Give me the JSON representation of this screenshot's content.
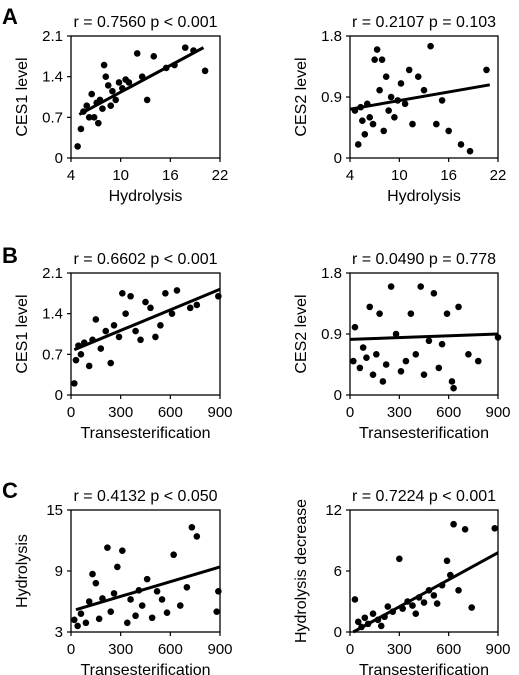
{
  "panels": [
    {
      "label": "A"
    },
    {
      "label": "B"
    },
    {
      "label": "C"
    }
  ],
  "chart_data": [
    {
      "type": "scatter",
      "title": "r = 0.7560 p < 0.001",
      "xlabel": "Hydrolysis",
      "ylabel": "CES1 level",
      "xlim": [
        4,
        22
      ],
      "ylim": [
        0,
        2.1
      ],
      "xticks": [
        "4",
        "10",
        "16",
        "22"
      ],
      "xtick_values": [
        4,
        10,
        16,
        22
      ],
      "yticks": [
        "0",
        "0.7",
        "1.4",
        "2.1"
      ],
      "ytick_values": [
        0,
        0.7,
        1.4,
        2.1
      ],
      "grid": false,
      "legend": "none",
      "trendline": {
        "x": [
          5,
          20
        ],
        "y": [
          0.75,
          1.9
        ]
      },
      "points": [
        [
          4.8,
          0.2
        ],
        [
          5.2,
          0.5
        ],
        [
          5.5,
          0.8
        ],
        [
          5.9,
          0.9
        ],
        [
          6.2,
          0.7
        ],
        [
          6.5,
          1.1
        ],
        [
          6.8,
          0.7
        ],
        [
          7.1,
          0.95
        ],
        [
          7.3,
          0.6
        ],
        [
          7.5,
          1.0
        ],
        [
          7.8,
          0.85
        ],
        [
          8.0,
          1.6
        ],
        [
          8.2,
          1.4
        ],
        [
          8.5,
          1.25
        ],
        [
          8.8,
          0.9
        ],
        [
          9.0,
          1.15
        ],
        [
          9.4,
          1.0
        ],
        [
          9.8,
          1.3
        ],
        [
          10.2,
          1.2
        ],
        [
          10.6,
          1.35
        ],
        [
          11.0,
          1.3
        ],
        [
          12.0,
          1.8
        ],
        [
          12.6,
          1.4
        ],
        [
          13.2,
          1.0
        ],
        [
          14.0,
          1.75
        ],
        [
          15.5,
          1.55
        ],
        [
          16.5,
          1.6
        ],
        [
          17.8,
          1.9
        ],
        [
          18.8,
          1.85
        ],
        [
          20.2,
          1.5
        ]
      ]
    },
    {
      "type": "scatter",
      "title": "r = 0.2107 p = 0.103",
      "xlabel": "Hydrolysis",
      "ylabel": "CES2 level",
      "xlim": [
        4,
        22
      ],
      "ylim": [
        0,
        1.8
      ],
      "xticks": [
        "4",
        "10",
        "16",
        "22"
      ],
      "xtick_values": [
        4,
        10,
        16,
        22
      ],
      "yticks": [
        "0",
        "0.9",
        "1.8"
      ],
      "ytick_values": [
        0,
        0.9,
        1.8
      ],
      "grid": false,
      "legend": "none",
      "trendline": {
        "x": [
          4,
          21
        ],
        "y": [
          0.72,
          1.08
        ]
      },
      "points": [
        [
          4.6,
          0.7
        ],
        [
          5.0,
          0.2
        ],
        [
          5.3,
          0.75
        ],
        [
          5.5,
          0.55
        ],
        [
          5.8,
          0.35
        ],
        [
          6.1,
          0.8
        ],
        [
          6.4,
          0.6
        ],
        [
          6.8,
          0.5
        ],
        [
          7.0,
          1.45
        ],
        [
          7.3,
          1.6
        ],
        [
          7.6,
          1.0
        ],
        [
          7.9,
          1.45
        ],
        [
          8.1,
          0.4
        ],
        [
          8.4,
          1.2
        ],
        [
          8.7,
          0.7
        ],
        [
          9.0,
          0.9
        ],
        [
          9.4,
          0.6
        ],
        [
          9.8,
          0.85
        ],
        [
          10.2,
          1.1
        ],
        [
          10.7,
          0.8
        ],
        [
          11.2,
          1.3
        ],
        [
          11.6,
          0.5
        ],
        [
          12.3,
          1.2
        ],
        [
          13.0,
          1.0
        ],
        [
          13.8,
          1.65
        ],
        [
          14.5,
          0.5
        ],
        [
          15.2,
          0.85
        ],
        [
          16.0,
          0.4
        ],
        [
          17.5,
          0.2
        ],
        [
          18.6,
          0.1
        ],
        [
          20.6,
          1.3
        ]
      ]
    },
    {
      "type": "scatter",
      "title": "r = 0.6602 p < 0.001",
      "xlabel": "Transesterification",
      "ylabel": "CES1 level",
      "xlim": [
        0,
        900
      ],
      "ylim": [
        0,
        2.1
      ],
      "xticks": [
        "0",
        "300",
        "600",
        "900"
      ],
      "xtick_values": [
        0,
        300,
        600,
        900
      ],
      "yticks": [
        "0",
        "0.7",
        "1.4",
        "2.1"
      ],
      "ytick_values": [
        0,
        0.7,
        1.4,
        2.1
      ],
      "grid": false,
      "legend": "none",
      "trendline": {
        "x": [
          20,
          900
        ],
        "y": [
          0.78,
          1.82
        ]
      },
      "points": [
        [
          20,
          0.2
        ],
        [
          30,
          0.6
        ],
        [
          45,
          0.85
        ],
        [
          60,
          0.7
        ],
        [
          80,
          0.9
        ],
        [
          110,
          0.5
        ],
        [
          130,
          0.95
        ],
        [
          150,
          1.3
        ],
        [
          180,
          0.8
        ],
        [
          210,
          1.1
        ],
        [
          240,
          0.55
        ],
        [
          260,
          1.2
        ],
        [
          290,
          1.0
        ],
        [
          310,
          1.75
        ],
        [
          330,
          1.4
        ],
        [
          360,
          1.7
        ],
        [
          390,
          1.1
        ],
        [
          420,
          0.95
        ],
        [
          450,
          1.6
        ],
        [
          480,
          1.5
        ],
        [
          510,
          1.0
        ],
        [
          540,
          1.2
        ],
        [
          570,
          1.75
        ],
        [
          610,
          1.4
        ],
        [
          640,
          1.8
        ],
        [
          720,
          1.5
        ],
        [
          760,
          1.55
        ],
        [
          890,
          1.7
        ]
      ]
    },
    {
      "type": "scatter",
      "title": "r = 0.0490 p = 0.778",
      "xlabel": "Transesterification",
      "ylabel": "CES2 level",
      "xlim": [
        0,
        900
      ],
      "ylim": [
        0,
        1.8
      ],
      "xticks": [
        "0",
        "300",
        "600",
        "900"
      ],
      "xtick_values": [
        0,
        300,
        600,
        900
      ],
      "yticks": [
        "0",
        "0.9",
        "1.8"
      ],
      "ytick_values": [
        0,
        0.9,
        1.8
      ],
      "grid": false,
      "legend": "none",
      "trendline": {
        "x": [
          0,
          900
        ],
        "y": [
          0.82,
          0.9
        ]
      },
      "points": [
        [
          20,
          0.5
        ],
        [
          30,
          1.0
        ],
        [
          60,
          0.4
        ],
        [
          80,
          0.7
        ],
        [
          100,
          0.55
        ],
        [
          120,
          1.3
        ],
        [
          140,
          0.3
        ],
        [
          160,
          0.6
        ],
        [
          180,
          1.2
        ],
        [
          200,
          0.2
        ],
        [
          220,
          0.45
        ],
        [
          250,
          1.6
        ],
        [
          280,
          0.9
        ],
        [
          310,
          0.35
        ],
        [
          340,
          0.5
        ],
        [
          370,
          1.2
        ],
        [
          400,
          0.6
        ],
        [
          430,
          1.6
        ],
        [
          450,
          0.3
        ],
        [
          480,
          0.8
        ],
        [
          510,
          1.5
        ],
        [
          540,
          0.4
        ],
        [
          560,
          0.75
        ],
        [
          590,
          1.2
        ],
        [
          620,
          0.2
        ],
        [
          630,
          0.1
        ],
        [
          660,
          1.3
        ],
        [
          720,
          0.6
        ],
        [
          780,
          0.5
        ],
        [
          900,
          0.85
        ]
      ]
    },
    {
      "type": "scatter",
      "title": "r = 0.4132 p < 0.050",
      "xlabel": "Transesterification",
      "ylabel": "Hydrolysis",
      "xlim": [
        0,
        900
      ],
      "ylim": [
        3,
        15
      ],
      "xticks": [
        "0",
        "300",
        "600",
        "900"
      ],
      "xtick_values": [
        0,
        300,
        600,
        900
      ],
      "yticks": [
        "3",
        "9",
        "15"
      ],
      "ytick_values": [
        3,
        9,
        15
      ],
      "grid": false,
      "legend": "none",
      "trendline": {
        "x": [
          30,
          900
        ],
        "y": [
          5.2,
          9.4
        ]
      },
      "points": [
        [
          20,
          4.2
        ],
        [
          40,
          3.6
        ],
        [
          60,
          4.8
        ],
        [
          90,
          3.9
        ],
        [
          110,
          6.0
        ],
        [
          130,
          8.7
        ],
        [
          150,
          7.8
        ],
        [
          170,
          4.3
        ],
        [
          190,
          6.3
        ],
        [
          220,
          11.3
        ],
        [
          240,
          5.0
        ],
        [
          260,
          6.8
        ],
        [
          280,
          9.4
        ],
        [
          310,
          11.0
        ],
        [
          340,
          3.9
        ],
        [
          360,
          6.2
        ],
        [
          390,
          4.6
        ],
        [
          410,
          7.1
        ],
        [
          430,
          5.6
        ],
        [
          460,
          8.2
        ],
        [
          490,
          4.4
        ],
        [
          520,
          7.0
        ],
        [
          550,
          6.2
        ],
        [
          580,
          4.9
        ],
        [
          620,
          10.6
        ],
        [
          660,
          5.6
        ],
        [
          700,
          7.4
        ],
        [
          730,
          13.3
        ],
        [
          760,
          12.4
        ],
        [
          880,
          5.0
        ],
        [
          890,
          7.0
        ]
      ]
    },
    {
      "type": "scatter",
      "title": "r = 0.7224 p < 0.001",
      "xlabel": "Transesterification",
      "ylabel": "Hydrolysis decrease",
      "xlim": [
        0,
        900
      ],
      "ylim": [
        0,
        12
      ],
      "xticks": [
        "0",
        "300",
        "600",
        "900"
      ],
      "xtick_values": [
        0,
        300,
        600,
        900
      ],
      "yticks": [
        "0",
        "6",
        "12"
      ],
      "ytick_values": [
        0,
        6,
        12
      ],
      "grid": false,
      "legend": "none",
      "trendline": {
        "x": [
          20,
          900
        ],
        "y": [
          0.0,
          7.8
        ]
      },
      "points": [
        [
          30,
          3.2
        ],
        [
          50,
          1.0
        ],
        [
          70,
          0.5
        ],
        [
          90,
          1.4
        ],
        [
          110,
          0.8
        ],
        [
          140,
          1.8
        ],
        [
          170,
          1.2
        ],
        [
          190,
          0.6
        ],
        [
          210,
          1.5
        ],
        [
          230,
          2.5
        ],
        [
          260,
          2.0
        ],
        [
          300,
          7.2
        ],
        [
          320,
          2.3
        ],
        [
          350,
          3.0
        ],
        [
          380,
          2.6
        ],
        [
          400,
          1.8
        ],
        [
          420,
          3.4
        ],
        [
          450,
          2.9
        ],
        [
          480,
          4.1
        ],
        [
          510,
          3.6
        ],
        [
          530,
          2.8
        ],
        [
          560,
          4.6
        ],
        [
          590,
          7.0
        ],
        [
          610,
          5.6
        ],
        [
          630,
          10.6
        ],
        [
          660,
          4.1
        ],
        [
          700,
          10.1
        ],
        [
          740,
          2.4
        ],
        [
          880,
          10.2
        ]
      ]
    }
  ]
}
